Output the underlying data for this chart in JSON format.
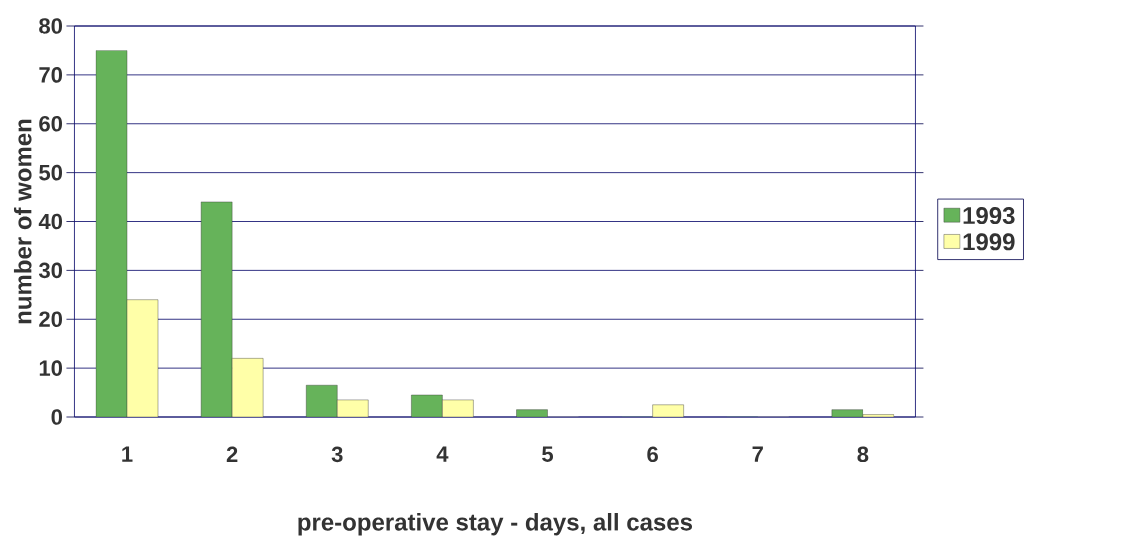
{
  "chart_data": {
    "type": "bar",
    "xlabel": "pre-operative stay - days, all cases",
    "ylabel": "number of women",
    "categories": [
      "1",
      "2",
      "3",
      "4",
      "5",
      "6",
      "7",
      "8"
    ],
    "series": [
      {
        "name": "1993",
        "color": "#66b35a",
        "values": [
          75,
          44,
          6.5,
          4.5,
          1.5,
          0,
          0,
          1.5
        ]
      },
      {
        "name": "1999",
        "color": "#ffffa8",
        "values": [
          24,
          12,
          3.5,
          3.5,
          0,
          2.5,
          0,
          0.5
        ]
      }
    ],
    "ylim": [
      0,
      80
    ],
    "yticks": [
      0,
      10,
      20,
      30,
      40,
      50,
      60,
      70,
      80
    ],
    "grid": "y",
    "legend": "right"
  }
}
